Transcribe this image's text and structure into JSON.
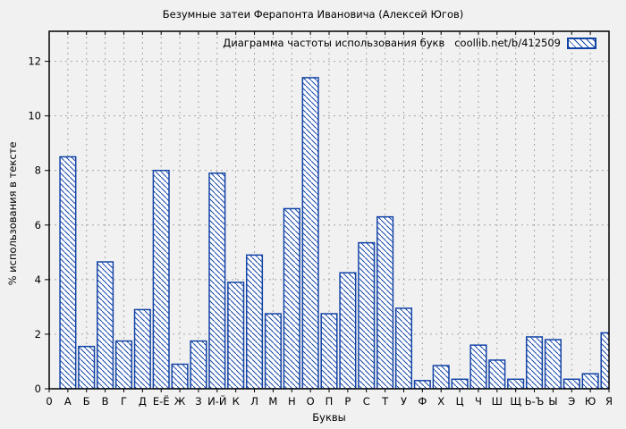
{
  "chart_data": {
    "type": "bar",
    "title": "Безумные затеи Ферапонта Ивановича (Алексей Югов)",
    "categories": [
      "А",
      "Б",
      "В",
      "Г",
      "Д",
      "Е-Ё",
      "Ж",
      "З",
      "И-Й",
      "К",
      "Л",
      "М",
      "Н",
      "О",
      "П",
      "Р",
      "С",
      "Т",
      "У",
      "Ф",
      "Х",
      "Ц",
      "Ч",
      "Ш",
      "Щ",
      "Ь-Ъ",
      "Ы",
      "Э",
      "Ю",
      "Я"
    ],
    "values": [
      8.5,
      1.55,
      4.65,
      1.75,
      2.9,
      8.0,
      0.9,
      1.75,
      7.9,
      3.9,
      4.9,
      2.75,
      6.6,
      11.4,
      2.75,
      4.25,
      5.35,
      6.3,
      2.95,
      0.3,
      0.85,
      0.35,
      1.6,
      1.05,
      0.35,
      1.9,
      1.8,
      0.35,
      0.55,
      2.05
    ],
    "xlabel": "Буквы",
    "ylabel": "% использования в тексте",
    "x_origin_label": "0",
    "y_ticks": [
      0,
      2,
      4,
      6,
      8,
      10,
      12
    ],
    "ylim": [
      0,
      13.1
    ],
    "grid": true,
    "bar_style": "diagonal-hatch",
    "legend": {
      "label": "Диаграмма частоты использования букв",
      "source": "coollib.net/b/412509",
      "position": "top-right"
    },
    "colors": {
      "bar_stroke": "#1243a5",
      "bar_fill": "#ffffff",
      "grid": "#a6a6a6",
      "axis": "#000000",
      "text": "#000000",
      "background": "#f1f1f1"
    }
  }
}
